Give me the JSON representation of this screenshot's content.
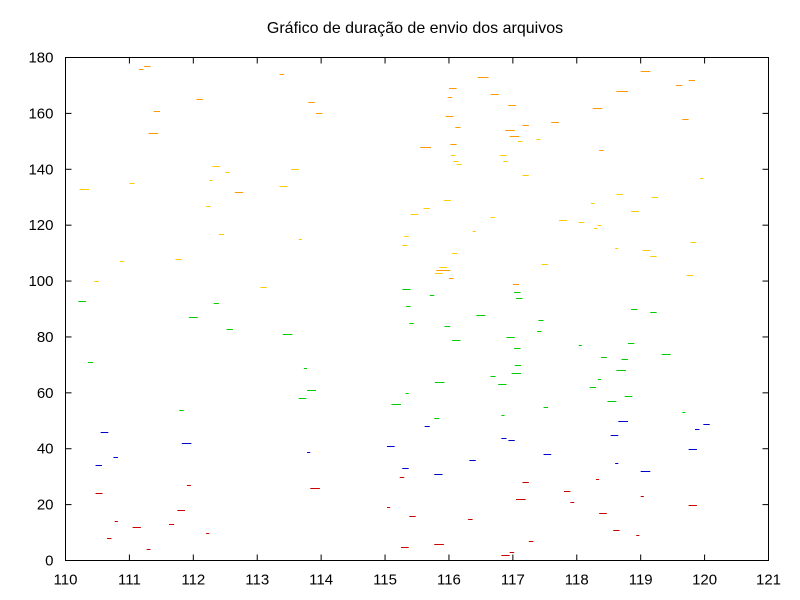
{
  "chart_data": {
    "type": "scatter",
    "title": "Gráfico de duração de envio dos arquivos",
    "xlabel": "",
    "ylabel": "",
    "xlim": [
      110,
      121
    ],
    "ylim": [
      0,
      180
    ],
    "xticks": [
      110,
      111,
      112,
      113,
      114,
      115,
      116,
      117,
      118,
      119,
      120,
      121
    ],
    "yticks": [
      0,
      20,
      40,
      60,
      80,
      100,
      120,
      140,
      160,
      180
    ],
    "grid": false,
    "legend": "none",
    "mark": "horizontal segment from x_start to x_end at y",
    "series": [
      {
        "color": "#cc0000",
        "segments": [
          [
            110.65,
            110.72,
            8
          ],
          [
            110.47,
            110.58,
            24
          ],
          [
            110.77,
            110.82,
            14
          ],
          [
            111.05,
            111.18,
            12
          ],
          [
            111.27,
            111.33,
            4
          ],
          [
            111.62,
            111.7,
            13
          ],
          [
            111.75,
            111.87,
            18
          ],
          [
            111.9,
            111.96,
            27
          ],
          [
            112.2,
            112.25,
            10
          ],
          [
            113.83,
            113.98,
            26
          ],
          [
            115.03,
            115.08,
            19
          ],
          [
            115.23,
            115.3,
            30
          ],
          [
            115.25,
            115.37,
            5
          ],
          [
            115.38,
            115.48,
            16
          ],
          [
            115.77,
            115.92,
            6
          ],
          [
            116.3,
            116.37,
            15
          ],
          [
            116.82,
            116.95,
            2
          ],
          [
            116.95,
            117.02,
            3
          ],
          [
            117.05,
            117.2,
            22
          ],
          [
            117.15,
            117.25,
            28
          ],
          [
            117.25,
            117.32,
            7
          ],
          [
            117.8,
            117.9,
            25
          ],
          [
            117.9,
            117.96,
            21
          ],
          [
            118.3,
            118.35,
            29
          ],
          [
            118.35,
            118.47,
            17
          ],
          [
            118.57,
            118.67,
            11
          ],
          [
            118.93,
            118.98,
            9
          ],
          [
            119.0,
            119.05,
            23
          ],
          [
            119.75,
            119.88,
            20
          ]
        ]
      },
      {
        "color": "#0000cc",
        "segments": [
          [
            110.47,
            110.57,
            34
          ],
          [
            110.55,
            110.67,
            46
          ],
          [
            110.75,
            110.82,
            37
          ],
          [
            111.82,
            111.97,
            42
          ],
          [
            113.78,
            113.83,
            39
          ],
          [
            115.03,
            115.15,
            41
          ],
          [
            115.27,
            115.37,
            33
          ],
          [
            115.62,
            115.7,
            48
          ],
          [
            115.77,
            115.9,
            31
          ],
          [
            116.32,
            116.42,
            36
          ],
          [
            116.82,
            116.9,
            44
          ],
          [
            116.93,
            117.03,
            43
          ],
          [
            117.48,
            117.6,
            38
          ],
          [
            118.53,
            118.65,
            45
          ],
          [
            118.6,
            118.65,
            35
          ],
          [
            118.65,
            118.8,
            50
          ],
          [
            119.0,
            119.15,
            32
          ],
          [
            119.75,
            119.88,
            40
          ],
          [
            119.85,
            119.92,
            47
          ],
          [
            119.98,
            120.08,
            49
          ]
        ]
      },
      {
        "color": "#00cc00",
        "segments": [
          [
            110.2,
            110.32,
            93
          ],
          [
            110.35,
            110.43,
            71
          ],
          [
            111.78,
            111.85,
            54
          ],
          [
            111.93,
            112.07,
            87
          ],
          [
            112.32,
            112.4,
            92
          ],
          [
            112.52,
            112.62,
            83
          ],
          [
            113.4,
            113.55,
            81
          ],
          [
            113.65,
            113.77,
            58
          ],
          [
            113.73,
            113.78,
            69
          ],
          [
            113.78,
            113.92,
            61
          ],
          [
            115.1,
            115.25,
            56
          ],
          [
            115.27,
            115.4,
            97
          ],
          [
            115.32,
            115.37,
            60
          ],
          [
            115.33,
            115.4,
            91
          ],
          [
            115.38,
            115.45,
            85
          ],
          [
            115.7,
            115.77,
            95
          ],
          [
            115.77,
            115.85,
            51
          ],
          [
            115.78,
            115.93,
            64
          ],
          [
            115.93,
            116.02,
            84
          ],
          [
            116.05,
            116.18,
            79
          ],
          [
            116.43,
            116.57,
            88
          ],
          [
            116.65,
            116.73,
            66
          ],
          [
            116.77,
            116.9,
            63
          ],
          [
            116.82,
            116.87,
            52
          ],
          [
            116.9,
            117.03,
            80
          ],
          [
            116.98,
            117.13,
            67
          ],
          [
            117.02,
            117.12,
            76
          ],
          [
            117.02,
            117.12,
            96
          ],
          [
            117.03,
            117.13,
            70
          ],
          [
            117.05,
            117.15,
            94
          ],
          [
            117.38,
            117.45,
            82
          ],
          [
            117.4,
            117.48,
            86
          ],
          [
            117.48,
            117.55,
            55
          ],
          [
            118.03,
            118.08,
            77
          ],
          [
            118.2,
            118.3,
            62
          ],
          [
            118.33,
            118.38,
            65
          ],
          [
            118.38,
            118.47,
            73
          ],
          [
            118.48,
            118.62,
            57
          ],
          [
            118.62,
            118.77,
            68
          ],
          [
            118.7,
            118.8,
            72
          ],
          [
            118.75,
            118.87,
            59
          ],
          [
            118.8,
            118.9,
            78
          ],
          [
            118.85,
            118.95,
            90
          ],
          [
            119.15,
            119.25,
            89
          ],
          [
            119.33,
            119.47,
            74
          ],
          [
            119.65,
            119.7,
            53
          ]
        ]
      },
      {
        "color": "#ff9900",
        "segments": [
          [
            111.15,
            111.22,
            176
          ],
          [
            111.23,
            111.33,
            177
          ],
          [
            111.3,
            111.45,
            153
          ],
          [
            111.38,
            111.48,
            161
          ],
          [
            112.05,
            112.15,
            165
          ],
          [
            112.65,
            112.78,
            132
          ],
          [
            113.35,
            113.42,
            174
          ],
          [
            113.8,
            113.9,
            164
          ],
          [
            113.92,
            114.02,
            160
          ],
          [
            115.55,
            115.72,
            148
          ],
          [
            115.95,
            116.07,
            159
          ],
          [
            115.98,
            116.05,
            166
          ],
          [
            116.0,
            116.12,
            169
          ],
          [
            116.02,
            116.12,
            149
          ],
          [
            116.1,
            116.18,
            155
          ],
          [
            116.45,
            116.62,
            173
          ],
          [
            116.65,
            116.78,
            167
          ],
          [
            116.88,
            117.03,
            154
          ],
          [
            116.93,
            117.05,
            163
          ],
          [
            116.95,
            117.1,
            152
          ],
          [
            117.0,
            117.1,
            99
          ],
          [
            117.15,
            117.25,
            156
          ],
          [
            117.6,
            117.72,
            157
          ],
          [
            118.25,
            118.4,
            162
          ],
          [
            118.35,
            118.42,
            147
          ],
          [
            118.62,
            118.8,
            168
          ],
          [
            119.0,
            119.15,
            175
          ],
          [
            119.55,
            119.65,
            170
          ],
          [
            119.65,
            119.75,
            158
          ],
          [
            119.75,
            119.85,
            172
          ],
          [
            115.8,
            116.02,
            104
          ],
          [
            116.0,
            116.07,
            101
          ]
        ]
      },
      {
        "color": "#ffcc00",
        "segments": [
          [
            110.22,
            110.37,
            133
          ],
          [
            110.45,
            110.52,
            100
          ],
          [
            110.85,
            110.92,
            107
          ],
          [
            111.0,
            111.08,
            135
          ],
          [
            111.72,
            111.82,
            108
          ],
          [
            112.2,
            112.27,
            127
          ],
          [
            112.25,
            112.3,
            136
          ],
          [
            112.3,
            112.42,
            141
          ],
          [
            112.4,
            112.48,
            117
          ],
          [
            112.5,
            112.57,
            139
          ],
          [
            113.05,
            113.15,
            98
          ],
          [
            113.35,
            113.47,
            134
          ],
          [
            113.53,
            113.65,
            140
          ],
          [
            113.65,
            113.7,
            115
          ],
          [
            115.27,
            115.35,
            113
          ],
          [
            115.3,
            115.37,
            116
          ],
          [
            115.4,
            115.52,
            124
          ],
          [
            115.6,
            115.7,
            126
          ],
          [
            115.78,
            115.9,
            103
          ],
          [
            115.85,
            115.97,
            105
          ],
          [
            115.92,
            116.03,
            129
          ],
          [
            116.03,
            116.1,
            145
          ],
          [
            116.07,
            116.15,
            143
          ],
          [
            116.05,
            116.13,
            110
          ],
          [
            116.12,
            116.2,
            142
          ],
          [
            116.37,
            116.42,
            118
          ],
          [
            116.65,
            116.72,
            123
          ],
          [
            116.8,
            116.9,
            145
          ],
          [
            116.85,
            116.92,
            143
          ],
          [
            117.08,
            117.15,
            150
          ],
          [
            117.15,
            117.25,
            138
          ],
          [
            117.37,
            117.43,
            151
          ],
          [
            117.45,
            117.55,
            106
          ],
          [
            117.72,
            117.85,
            122
          ],
          [
            118.03,
            118.12,
            121
          ],
          [
            118.22,
            118.28,
            128
          ],
          [
            118.27,
            118.32,
            119
          ],
          [
            118.33,
            118.38,
            120
          ],
          [
            118.6,
            118.65,
            112
          ],
          [
            118.62,
            118.72,
            131
          ],
          [
            118.85,
            118.97,
            125
          ],
          [
            119.03,
            119.15,
            111
          ],
          [
            119.15,
            119.25,
            109
          ],
          [
            119.17,
            119.27,
            130
          ],
          [
            119.72,
            119.82,
            102
          ],
          [
            119.78,
            119.87,
            114
          ],
          [
            119.93,
            119.98,
            137
          ]
        ]
      }
    ]
  }
}
